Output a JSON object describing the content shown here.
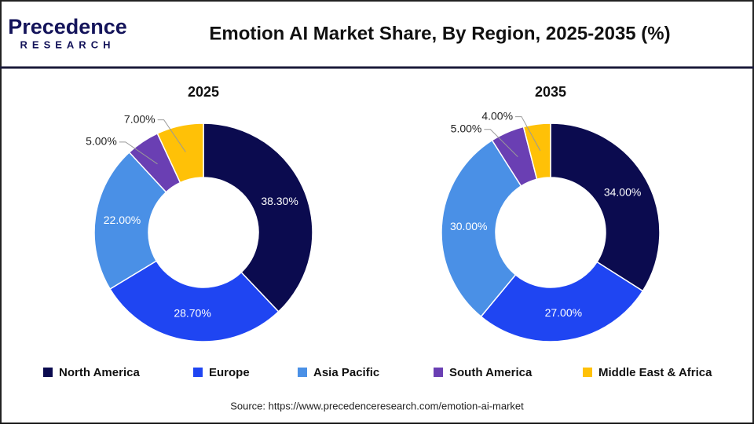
{
  "header": {
    "logo_top": "Precedence",
    "logo_bottom": "RESEARCH",
    "title": "Emotion AI Market Share, By Region, 2025-2035 (%)"
  },
  "chart_data": [
    {
      "type": "donut",
      "title": "2025",
      "categories": [
        "North America",
        "Europe",
        "Asia Pacific",
        "South America",
        "Middle East & Africa"
      ],
      "values": [
        38.3,
        28.7,
        22,
        5,
        7
      ],
      "value_labels": [
        "38.30%",
        "28.70%",
        "22.00%",
        "5.00%",
        "7.00%"
      ],
      "colors": [
        "#0b0b4f",
        "#1f45f2",
        "#4a90e6",
        "#6a3fb3",
        "#ffc107"
      ]
    },
    {
      "type": "donut",
      "title": "2035",
      "categories": [
        "North America",
        "Europe",
        "Asia Pacific",
        "South America",
        "Middle East & Africa"
      ],
      "values": [
        34,
        27,
        30,
        5,
        4
      ],
      "value_labels": [
        "34.00%",
        "27.00%",
        "30.00%",
        "5.00%",
        "4.00%"
      ],
      "colors": [
        "#0b0b4f",
        "#1f45f2",
        "#4a90e6",
        "#6a3fb3",
        "#ffc107"
      ]
    }
  ],
  "source": "Source: https://www.precedenceresearch.com/emotion-ai-market"
}
